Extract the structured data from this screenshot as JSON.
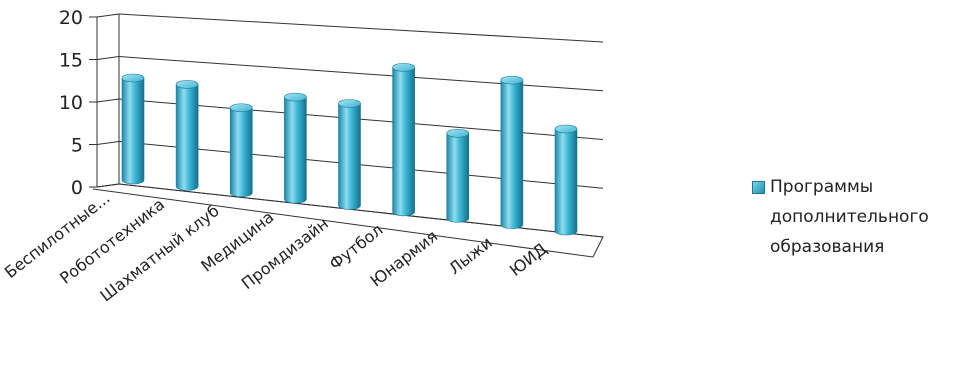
{
  "chart_data": {
    "type": "bar",
    "style": "3d-cylinder",
    "title": "",
    "xlabel": "",
    "ylabel": "",
    "categories": [
      "Беспилотные...",
      "Робототехника",
      "Шахматный клуб",
      "Медицина",
      "Промдизайн",
      "Футбол",
      "Юнармия",
      "Лыжи",
      "ЮИД"
    ],
    "series": [
      {
        "name": "Программы дополнительного образования",
        "values": [
          12,
          12,
          10,
          12,
          12,
          17,
          10,
          17,
          12
        ]
      }
    ],
    "ylim": [
      0,
      20
    ],
    "yticks": [
      "0",
      "5",
      "10",
      "15",
      "20"
    ],
    "grid": true,
    "legend_position": "right",
    "colors": {
      "bar_light": "#8ad9ec",
      "bar_mid": "#35b0d2",
      "bar_dark": "#1a7f9f",
      "grid": "#333333"
    }
  }
}
